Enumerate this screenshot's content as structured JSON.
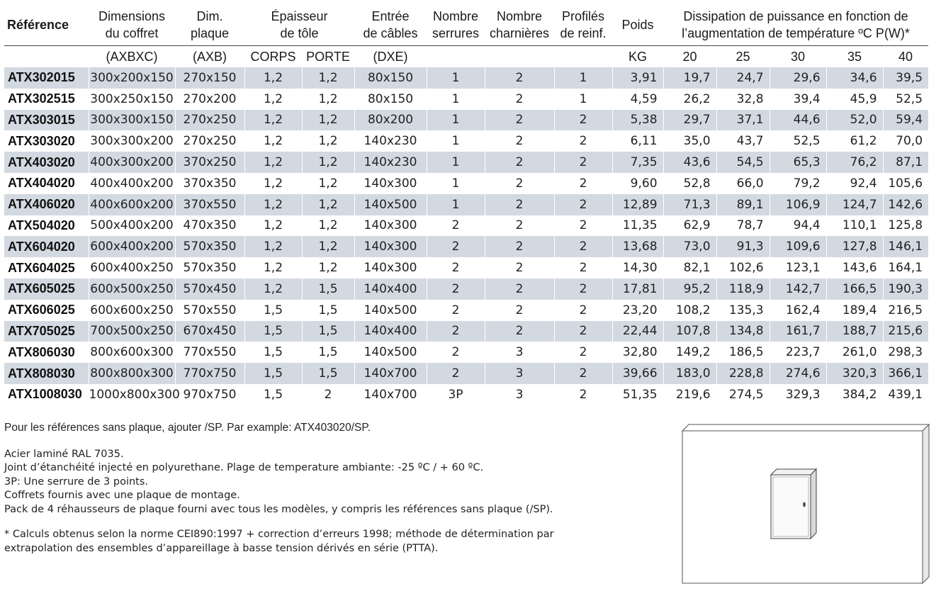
{
  "header": {
    "ref": "Référence",
    "dims": [
      "Dimensions",
      "du coffret"
    ],
    "plate": [
      "Dim.",
      "plaque"
    ],
    "thick": [
      "Épaisseur",
      "de tôle"
    ],
    "cable": [
      "Entrée",
      "de câbles"
    ],
    "locks": [
      "Nombre",
      "serrures"
    ],
    "hinges": [
      "Nombre",
      "charnières"
    ],
    "profiles": [
      "Profilés",
      "de reinf."
    ],
    "weight": "Poids",
    "dissipation": [
      "Dissipation de puissance en fonction de",
      "l’augmentation de température ºC P(W)*"
    ]
  },
  "subheader": {
    "dims": "(AXBXC)",
    "plate": "(AXB)",
    "body": "CORPS",
    "door": "PORTE",
    "cable": "(DXE)",
    "weight": "KG",
    "temps": [
      "20",
      "25",
      "30",
      "35",
      "40"
    ]
  },
  "rows": [
    {
      "ref": "ATX302015",
      "dims": "300x200x150",
      "plate": "270x150",
      "body": "1,2",
      "door": "1,2",
      "cable": "80x150",
      "locks": "1",
      "hinges": "2",
      "profiles": "1",
      "weight": "3,91",
      "p20": "19,7",
      "p25": "24,7",
      "p30": "29,6",
      "p35": "34,6",
      "p40": "39,5"
    },
    {
      "ref": "ATX302515",
      "dims": "300x250x150",
      "plate": "270x200",
      "body": "1,2",
      "door": "1,2",
      "cable": "80x150",
      "locks": "1",
      "hinges": "2",
      "profiles": "1",
      "weight": "4,59",
      "p20": "26,2",
      "p25": "32,8",
      "p30": "39,4",
      "p35": "45,9",
      "p40": "52,5"
    },
    {
      "ref": "ATX303015",
      "dims": "300x300x150",
      "plate": "270x250",
      "body": "1,2",
      "door": "1,2",
      "cable": "80x200",
      "locks": "1",
      "hinges": "2",
      "profiles": "2",
      "weight": "5,38",
      "p20": "29,7",
      "p25": "37,1",
      "p30": "44,6",
      "p35": "52,0",
      "p40": "59,4"
    },
    {
      "ref": "ATX303020",
      "dims": "300x300x200",
      "plate": "270x250",
      "body": "1,2",
      "door": "1,2",
      "cable": "140x230",
      "locks": "1",
      "hinges": "2",
      "profiles": "2",
      "weight": "6,11",
      "p20": "35,0",
      "p25": "43,7",
      "p30": "52,5",
      "p35": "61,2",
      "p40": "70,0"
    },
    {
      "ref": "ATX403020",
      "dims": "400x300x200",
      "plate": "370x250",
      "body": "1,2",
      "door": "1,2",
      "cable": "140x230",
      "locks": "1",
      "hinges": "2",
      "profiles": "2",
      "weight": "7,35",
      "p20": "43,6",
      "p25": "54,5",
      "p30": "65,3",
      "p35": "76,2",
      "p40": "87,1"
    },
    {
      "ref": "ATX404020",
      "dims": "400x400x200",
      "plate": "370x350",
      "body": "1,2",
      "door": "1,2",
      "cable": "140x300",
      "locks": "1",
      "hinges": "2",
      "profiles": "2",
      "weight": "9,60",
      "p20": "52,8",
      "p25": "66,0",
      "p30": "79,2",
      "p35": "92,4",
      "p40": "105,6"
    },
    {
      "ref": "ATX406020",
      "dims": "400x600x200",
      "plate": "370x550",
      "body": "1,2",
      "door": "1,2",
      "cable": "140x500",
      "locks": "1",
      "hinges": "2",
      "profiles": "2",
      "weight": "12,89",
      "p20": "71,3",
      "p25": "89,1",
      "p30": "106,9",
      "p35": "124,7",
      "p40": "142,6"
    },
    {
      "ref": "ATX504020",
      "dims": "500x400x200",
      "plate": "470x350",
      "body": "1,2",
      "door": "1,2",
      "cable": "140x300",
      "locks": "2",
      "hinges": "2",
      "profiles": "2",
      "weight": "11,35",
      "p20": "62,9",
      "p25": "78,7",
      "p30": "94,4",
      "p35": "110,1",
      "p40": "125,8"
    },
    {
      "ref": "ATX604020",
      "dims": "600x400x200",
      "plate": "570x350",
      "body": "1,2",
      "door": "1,2",
      "cable": "140x300",
      "locks": "2",
      "hinges": "2",
      "profiles": "2",
      "weight": "13,68",
      "p20": "73,0",
      "p25": "91,3",
      "p30": "109,6",
      "p35": "127,8",
      "p40": "146,1"
    },
    {
      "ref": "ATX604025",
      "dims": "600x400x250",
      "plate": "570x350",
      "body": "1,2",
      "door": "1,2",
      "cable": "140x300",
      "locks": "2",
      "hinges": "2",
      "profiles": "2",
      "weight": "14,30",
      "p20": "82,1",
      "p25": "102,6",
      "p30": "123,1",
      "p35": "143,6",
      "p40": "164,1"
    },
    {
      "ref": "ATX605025",
      "dims": "600x500x250",
      "plate": "570x450",
      "body": "1,2",
      "door": "1,5",
      "cable": "140x400",
      "locks": "2",
      "hinges": "2",
      "profiles": "2",
      "weight": "17,81",
      "p20": "95,2",
      "p25": "118,9",
      "p30": "142,7",
      "p35": "166,5",
      "p40": "190,3"
    },
    {
      "ref": "ATX606025",
      "dims": "600x600x250",
      "plate": "570x550",
      "body": "1,5",
      "door": "1,5",
      "cable": "140x500",
      "locks": "2",
      "hinges": "2",
      "profiles": "2",
      "weight": "23,20",
      "p20": "108,2",
      "p25": "135,3",
      "p30": "162,4",
      "p35": "189,4",
      "p40": "216,5"
    },
    {
      "ref": "ATX705025",
      "dims": "700x500x250",
      "plate": "670x450",
      "body": "1,5",
      "door": "1,5",
      "cable": "140x400",
      "locks": "2",
      "hinges": "2",
      "profiles": "2",
      "weight": "22,44",
      "p20": "107,8",
      "p25": "134,8",
      "p30": "161,7",
      "p35": "188,7",
      "p40": "215,6"
    },
    {
      "ref": "ATX806030",
      "dims": "800x600x300",
      "plate": "770x550",
      "body": "1,5",
      "door": "1,5",
      "cable": "140x500",
      "locks": "2",
      "hinges": "3",
      "profiles": "2",
      "weight": "32,80",
      "p20": "149,2",
      "p25": "186,5",
      "p30": "223,7",
      "p35": "261,0",
      "p40": "298,3"
    },
    {
      "ref": "ATX808030",
      "dims": "800x800x300",
      "plate": "770x750",
      "body": "1,5",
      "door": "1,5",
      "cable": "140x700",
      "locks": "2",
      "hinges": "3",
      "profiles": "2",
      "weight": "39,66",
      "p20": "183,0",
      "p25": "228,8",
      "p30": "274,6",
      "p35": "320,3",
      "p40": "366,1"
    },
    {
      "ref": "ATX1008030",
      "dims": "1000x800x300",
      "plate": "970x750",
      "body": "1,5",
      "door": "2",
      "cable": "140x700",
      "locks": "3P",
      "hinges": "3",
      "profiles": "2",
      "weight": "51,35",
      "p20": "219,6",
      "p25": "274,5",
      "p30": "329,3",
      "p35": "384,2",
      "p40": "439,1"
    }
  ],
  "notes": {
    "plain": "Pour les références sans plaque, ajouter /SP. Par example: ATX403020/SP.",
    "lines": [
      "Acier laminé RAL 7035.",
      "Joint d’étanchéité injecté en polyurethane. Plage de temperature ambiante: -25 ºC / + 60 ºC.",
      "3P: Une serrure de 3 points.",
      "Coffrets fournis avec une plaque de montage.",
      "Pack de 4 réhausseurs de plaque fourni avec tous les modèles, y compris les références sans plaque (/SP)."
    ],
    "footnote": [
      "* Calculs obtenus selon la norme CEI890:1997 + correction d’erreurs 1998; méthode de détermination par",
      "extrapolation des ensembles d’appareillage à basse tension dérivés en série (PTTA)."
    ]
  },
  "colors": {
    "row_shade": "#d3d9e1"
  }
}
